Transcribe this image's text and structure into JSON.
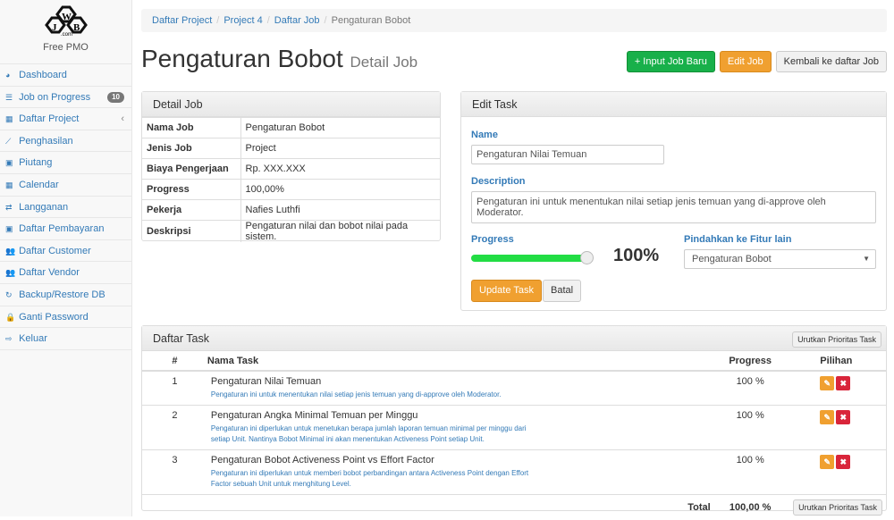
{
  "sidebar": {
    "logo_text": "JWB .com",
    "app_name": "Free PMO",
    "items": [
      {
        "label": "Dashboard",
        "icon": "dashboard-icon"
      },
      {
        "label": "Job on Progress",
        "icon": "tasks-icon",
        "badge": "10"
      },
      {
        "label": "Daftar Project",
        "icon": "table-icon",
        "chevron": "‹"
      },
      {
        "label": "Penghasilan",
        "icon": "line-chart-icon"
      },
      {
        "label": "Piutang",
        "icon": "money-icon"
      },
      {
        "label": "Calendar",
        "icon": "calendar-icon"
      },
      {
        "label": "Langganan",
        "icon": "retweet-icon"
      },
      {
        "label": "Daftar Pembayaran",
        "icon": "money-icon"
      },
      {
        "label": "Daftar Customer",
        "icon": "users-icon"
      },
      {
        "label": "Daftar Vendor",
        "icon": "users-icon"
      },
      {
        "label": "Backup/Restore DB",
        "icon": "refresh-icon"
      },
      {
        "label": "Ganti Password",
        "icon": "lock-icon"
      },
      {
        "label": "Keluar",
        "icon": "sign-out-icon"
      }
    ]
  },
  "breadcrumb": [
    "Daftar Project",
    "Project 4",
    "Daftar Job",
    "Pengaturan Bobot"
  ],
  "header": {
    "title": "Pengaturan Bobot",
    "subtitle": "Detail Job",
    "btn_new": "+ Input Job Baru",
    "btn_edit": "Edit Job",
    "btn_back": "Kembali ke daftar Job"
  },
  "detail": {
    "title": "Detail Job",
    "rows": [
      {
        "k": "Nama Job",
        "v": "Pengaturan Bobot"
      },
      {
        "k": "Jenis Job",
        "v": "Project"
      },
      {
        "k": "Biaya Pengerjaan",
        "v": "Rp. XXX.XXX"
      },
      {
        "k": "Progress",
        "v": "100,00%"
      },
      {
        "k": "Pekerja",
        "v": "Nafies Luthfi"
      },
      {
        "k": "Deskripsi",
        "v": "Pengaturan nilai dan bobot nilai pada sistem."
      }
    ]
  },
  "edit": {
    "title": "Edit Task",
    "name_label": "Name",
    "name_value": "Pengaturan Nilai Temuan",
    "desc_label": "Description",
    "desc_value": "Pengaturan ini untuk menentukan nilai setiap jenis temuan yang di-approve oleh Moderator.",
    "progress_label": "Progress",
    "progress_value": 100,
    "progress_text": "100%",
    "move_label": "Pindahkan ke Fitur lain",
    "move_value": "Pengaturan Bobot",
    "update": "Update Task",
    "cancel": "Batal",
    "accent": "#22dd44"
  },
  "tasks": {
    "title": "Daftar Task",
    "sort_btn": "Urutkan Prioritas Task",
    "cols": [
      "#",
      "Nama Task",
      "Progress",
      "Pilihan"
    ],
    "rows": [
      {
        "no": "1",
        "name": "Pengaturan Nilai Temuan",
        "desc": "Pengaturan ini untuk menentukan nilai setiap jenis temuan yang di-approve oleh Moderator.",
        "progress": "100 %"
      },
      {
        "no": "2",
        "name": "Pengaturan Angka Minimal Temuan per Minggu",
        "desc": "Pengaturan ini diperlukan untuk menetukan berapa jumlah laporan temuan minimal per minggu dari setiap Unit. Nantinya Bobot Minimal ini akan menentukan Activeness Point setiap Unit.",
        "progress": "100 %"
      },
      {
        "no": "3",
        "name": "Pengaturan Bobot Activeness Point vs Effort Factor",
        "desc": "Pengaturan ini diperlukan untuk memberi bobot perbandingan antara Activeness Point dengan Effort Factor sebuah Unit untuk menghitung Level.",
        "progress": "100 %"
      }
    ],
    "total_label": "Total",
    "total_value": "100,00 %"
  }
}
